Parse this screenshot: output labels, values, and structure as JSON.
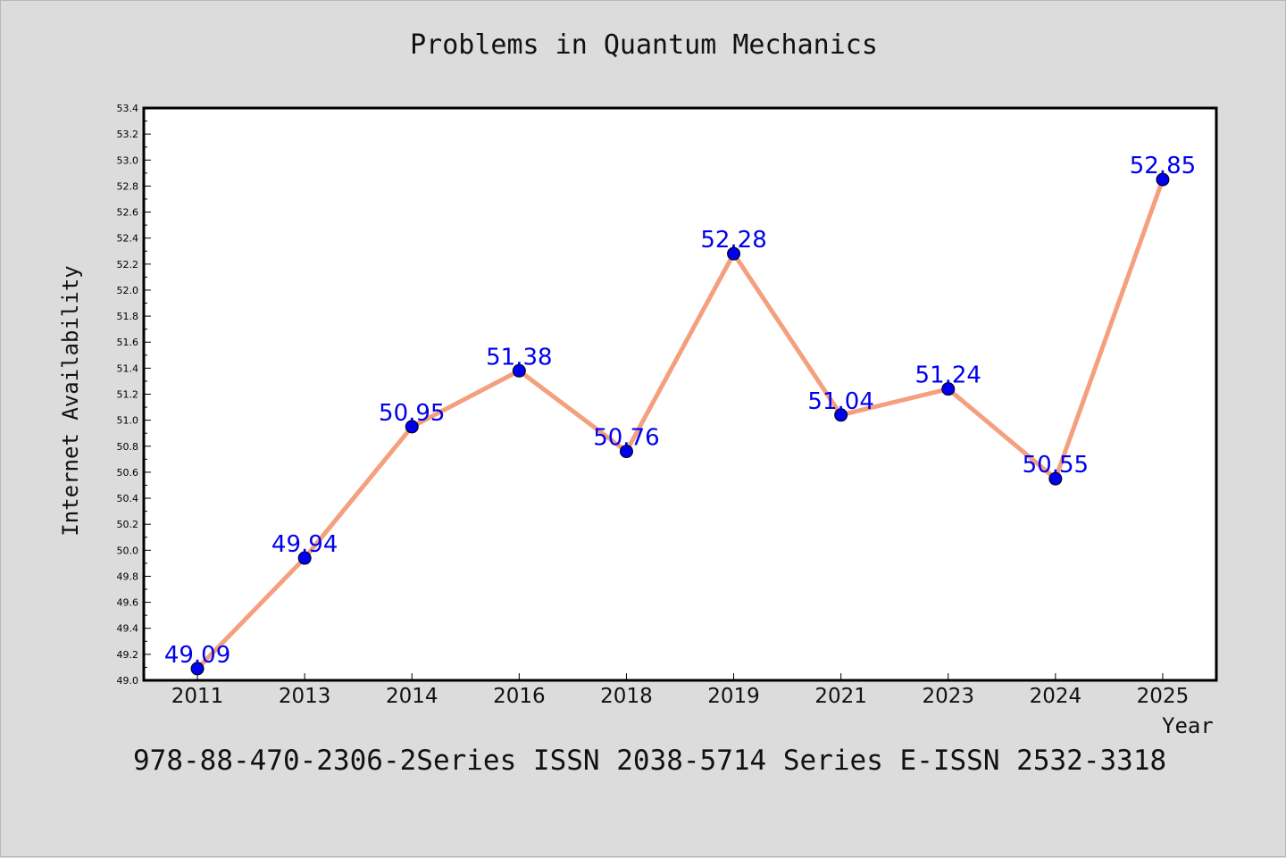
{
  "chart_data": {
    "type": "line",
    "title": "Problems in Quantum Mechanics",
    "xlabel": "Year",
    "ylabel": "Internet Availability",
    "categories": [
      "2011",
      "2013",
      "2014",
      "2016",
      "2018",
      "2019",
      "2021",
      "2023",
      "2024",
      "2025"
    ],
    "values": [
      49.09,
      49.94,
      50.95,
      51.38,
      50.76,
      52.28,
      51.04,
      51.24,
      50.55,
      52.85
    ],
    "value_labels": [
      "49.09",
      "49.94",
      "50.95",
      "51.38",
      "50.76",
      "52.28",
      "51.04",
      "51.24",
      "50.55",
      "52.85"
    ],
    "y_ticks": [
      "49.0",
      "49.2",
      "49.4",
      "49.6",
      "49.8",
      "50.0",
      "50.2",
      "50.4",
      "50.6",
      "50.8",
      "51.0",
      "51.2",
      "51.4",
      "51.6",
      "51.8",
      "52.0",
      "52.2",
      "52.4",
      "52.6",
      "52.8",
      "53.0",
      "53.2",
      "53.4"
    ],
    "ylim": [
      49.0,
      53.4
    ],
    "grid": false,
    "line_color": "#f4a07e",
    "marker_color": "#0000ee",
    "label_color": "#0000ee",
    "plot_background": "#ffffff",
    "page_background": "#dcdcdc"
  },
  "footer": "978-88-470-2306-2Series ISSN 2038-5714 Series E-ISSN 2532-3318"
}
